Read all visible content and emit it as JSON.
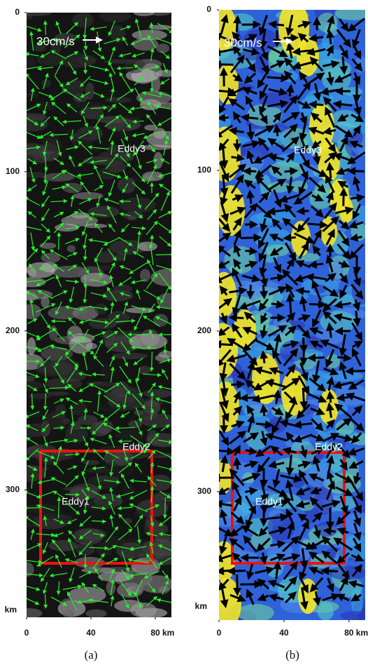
{
  "panels": [
    {
      "caption": "(a)",
      "xlim": [
        0,
        90
      ],
      "ylim": [
        0,
        380
      ],
      "xticks": [
        0,
        40,
        80
      ],
      "yticks": [
        0,
        100,
        200,
        300
      ],
      "x_unit": "km",
      "y_unit": "km",
      "scale_label": "30cm/s",
      "labels": [
        "Eddy3",
        "Eddy2",
        "Eddy1"
      ]
    },
    {
      "caption": "(b)",
      "xlim": [
        0,
        90
      ],
      "ylim": [
        0,
        380
      ],
      "xticks": [
        0,
        40,
        80
      ],
      "yticks": [
        0,
        100,
        200,
        300
      ],
      "x_unit": "km",
      "y_unit": "km",
      "scale_label": "30cm/s",
      "labels": [
        "Eddy3",
        "Eddy2",
        "Eddy1"
      ]
    }
  ]
}
